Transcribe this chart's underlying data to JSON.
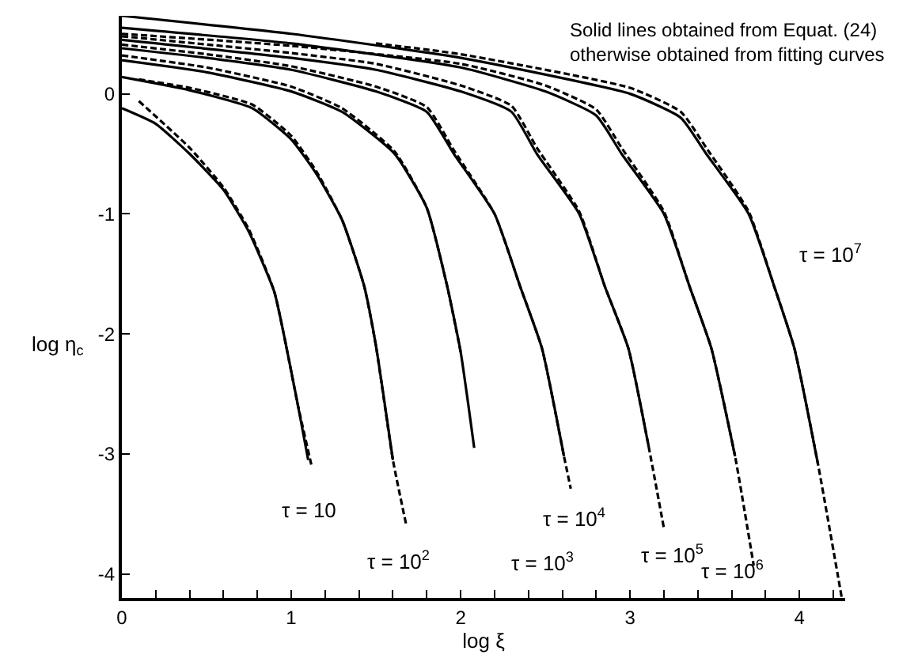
{
  "chart_data": {
    "type": "line",
    "xlabel": "log ξ",
    "ylabel": "log η$_{c}$",
    "xlim": [
      0,
      4.27
    ],
    "ylim": [
      -4.2,
      0.65
    ],
    "xticks": [
      0,
      {
        "value": 0.2,
        "label": null
      },
      {
        "value": 0.4,
        "label": null
      },
      {
        "value": 0.6,
        "label": null
      },
      {
        "value": 0.8,
        "label": null
      },
      1,
      {
        "value": 1.2,
        "label": null
      },
      {
        "value": 1.4,
        "label": null
      },
      {
        "value": 1.6,
        "label": null
      },
      {
        "value": 1.8,
        "label": null
      },
      2,
      {
        "value": 2.2,
        "label": null
      },
      {
        "value": 2.4,
        "label": null
      },
      {
        "value": 2.6,
        "label": null
      },
      {
        "value": 2.8,
        "label": null
      },
      3,
      {
        "value": 3.2,
        "label": null
      },
      {
        "value": 3.4,
        "label": null
      },
      {
        "value": 3.6,
        "label": null
      },
      {
        "value": 3.8,
        "label": null
      },
      4,
      {
        "value": 4.2,
        "label": null
      }
    ],
    "yticks": [
      -4,
      -3,
      -2,
      -1,
      0
    ],
    "marker": "none",
    "series": [
      {
        "color": "#000000",
        "line_style": "solid",
        "x": [
          0,
          0.2,
          0.4,
          0.6,
          0.75,
          0.9,
          0.96,
          1.04,
          1.1
        ],
        "values": [
          -0.12,
          -0.25,
          -0.5,
          -0.8,
          -1.15,
          -1.65,
          -2.03,
          -2.6,
          -3.05
        ]
      },
      {
        "color": "#000000",
        "line_style": "dashed",
        "x": [
          0.1,
          0.4,
          0.6,
          0.75,
          0.9,
          1.04,
          1.12
        ],
        "values": [
          -0.06,
          -0.45,
          -0.78,
          -1.13,
          -1.65,
          -2.6,
          -3.1
        ]
      },
      {
        "color": "#000000",
        "line_style": "solid",
        "x": [
          0,
          0.4,
          0.77,
          1.0,
          1.15,
          1.3,
          1.43,
          1.5,
          1.6
        ],
        "values": [
          0.14,
          0.03,
          -0.12,
          -0.38,
          -0.67,
          -1.05,
          -1.6,
          -2.1,
          -3.05
        ]
      },
      {
        "color": "#000000",
        "line_style": "dashed",
        "x": [
          0.1,
          0.4,
          0.77,
          1.0,
          1.15,
          1.3,
          1.43,
          1.5,
          1.6,
          1.68
        ],
        "values": [
          0.12,
          0.05,
          -0.09,
          -0.35,
          -0.65,
          -1.05,
          -1.6,
          -2.1,
          -3.05,
          -3.6
        ]
      },
      {
        "color": "#000000",
        "line_style": "solid",
        "x": [
          0,
          0.5,
          1.0,
          1.3,
          1.61,
          1.8,
          1.92,
          2.0,
          2.08
        ],
        "values": [
          0.28,
          0.18,
          0.02,
          -0.15,
          -0.5,
          -0.95,
          -1.6,
          -2.15,
          -2.95
        ]
      },
      {
        "color": "#000000",
        "line_style": "dashed",
        "x": [
          0,
          0.5,
          1.0,
          1.3,
          1.61,
          1.8,
          1.92,
          2.0
        ],
        "values": [
          0.32,
          0.22,
          0.06,
          -0.12,
          -0.48,
          -0.95,
          -1.6,
          -2.15
        ]
      },
      {
        "color": "#000000",
        "line_style": "solid",
        "x": [
          0,
          0.5,
          1,
          1.5,
          1.8,
          1.96,
          2.2,
          2.35,
          2.48,
          2.61
        ],
        "values": [
          0.38,
          0.3,
          0.2,
          0.02,
          -0.15,
          -0.5,
          -1.0,
          -1.6,
          -2.12,
          -3.02
        ]
      },
      {
        "color": "#000000",
        "line_style": "dashed",
        "x": [
          0,
          0.5,
          1,
          1.5,
          1.8,
          1.96,
          2.2,
          2.35,
          2.48,
          2.61,
          2.65
        ],
        "values": [
          0.41,
          0.33,
          0.23,
          0.06,
          -0.11,
          -0.47,
          -1.0,
          -1.6,
          -2.12,
          -3.02,
          -3.29
        ]
      },
      {
        "color": "#000000",
        "line_style": "solid",
        "x": [
          0,
          1,
          1.5,
          2,
          2.3,
          2.45,
          2.7,
          2.85,
          2.99,
          3.11
        ],
        "values": [
          0.45,
          0.3,
          0.2,
          0.02,
          -0.15,
          -0.5,
          -1.0,
          -1.6,
          -2.12,
          -2.94
        ]
      },
      {
        "color": "#000000",
        "line_style": "dashed",
        "x": [
          0,
          1,
          1.5,
          2,
          2.3,
          2.45,
          2.7,
          2.85,
          2.99,
          3.11,
          3.2
        ],
        "values": [
          0.48,
          0.34,
          0.25,
          0.07,
          -0.1,
          -0.45,
          -0.98,
          -1.6,
          -2.12,
          -2.94,
          -3.62
        ]
      },
      {
        "color": "#000000",
        "line_style": "solid",
        "x": [
          0,
          1,
          2,
          2.5,
          2.8,
          2.95,
          3.2,
          3.35,
          3.48,
          3.62
        ],
        "values": [
          0.55,
          0.42,
          0.22,
          0.02,
          -0.18,
          -0.5,
          -1.0,
          -1.6,
          -2.12,
          -3.02
        ]
      },
      {
        "color": "#000000",
        "line_style": "dashed",
        "x": [
          0,
          1,
          2,
          2.5,
          2.8,
          2.95,
          3.2,
          3.35,
          3.48,
          3.62,
          3.73
        ],
        "values": [
          0.5,
          0.4,
          0.25,
          0.07,
          -0.13,
          -0.45,
          -0.98,
          -1.6,
          -2.12,
          -3.02,
          -3.93
        ]
      },
      {
        "color": "#000000",
        "line_style": "solid",
        "x": [
          0,
          1,
          2,
          3,
          3.3,
          3.45,
          3.7,
          3.85,
          3.97,
          4.11
        ],
        "values": [
          0.65,
          0.5,
          0.3,
          0.0,
          -0.2,
          -0.5,
          -1.0,
          -1.6,
          -2.12,
          -3.09
        ]
      },
      {
        "color": "#000000",
        "line_style": "dashed",
        "x": [
          1.5,
          2,
          3,
          3.3,
          3.45,
          3.7,
          3.85,
          3.97,
          4.11,
          4.25
        ],
        "values": [
          0.42,
          0.33,
          0.05,
          -0.15,
          -0.45,
          -0.98,
          -1.6,
          -2.12,
          -3.09,
          -4.2
        ]
      }
    ],
    "annotations": [
      "Solid lines obtained from Equat. (24)\notherwise obtained from fitting curves",
      {
        "text": "τ = 10",
        "x": 1.1,
        "y": -3.05
      },
      {
        "text": "τ = 10$^{2}$",
        "x": 1.68,
        "y": -3.6
      },
      "τ = 10$^{3}$",
      {
        "text": "τ = 10$^{4}$",
        "x": 2.65,
        "y": -3.29
      },
      {
        "text": "τ = 10$^{5}$",
        "x": 3.2,
        "y": -3.62
      },
      {
        "text": "τ = 10$^{6}$",
        "x": 3.73,
        "y": -3.93
      },
      {
        "text": "τ = 10$^{7}$",
        "x": 3.79,
        "y": -1.2
      }
    ]
  }
}
